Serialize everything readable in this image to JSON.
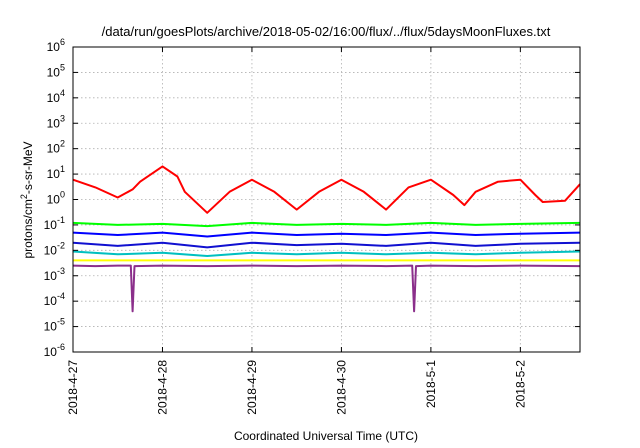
{
  "chart_data": {
    "type": "line",
    "title": "/data/run/goesPlots/archive/2018-05-02/16:00/flux/../flux/5daysMoonFluxes.txt",
    "xlabel": "Coordinated Universal Time (UTC)",
    "ylabel_parts": {
      "pre": "protons/cm",
      "sup": "2",
      "post": "-s-sr-MeV"
    },
    "y_scale": "log",
    "ylim": [
      1e-06,
      1000000.0
    ],
    "y_ticks": [
      {
        "value": 1e-06,
        "base": "10",
        "exp": "-6"
      },
      {
        "value": 1e-05,
        "base": "10",
        "exp": "-5"
      },
      {
        "value": 0.0001,
        "base": "10",
        "exp": "-4"
      },
      {
        "value": 0.001,
        "base": "10",
        "exp": "-3"
      },
      {
        "value": 0.01,
        "base": "10",
        "exp": "-2"
      },
      {
        "value": 0.1,
        "base": "10",
        "exp": "-1"
      },
      {
        "value": 1.0,
        "base": "10",
        "exp": "0"
      },
      {
        "value": 10.0,
        "base": "10",
        "exp": "1"
      },
      {
        "value": 100.0,
        "base": "10",
        "exp": "2"
      },
      {
        "value": 1000.0,
        "base": "10",
        "exp": "3"
      },
      {
        "value": 10000.0,
        "base": "10",
        "exp": "4"
      },
      {
        "value": 100000.0,
        "base": "10",
        "exp": "5"
      },
      {
        "value": 1000000.0,
        "base": "10",
        "exp": "6"
      }
    ],
    "xlim": [
      "2018-04-27 00:00",
      "2018-05-02 16:00"
    ],
    "x_ticks": [
      {
        "value": "2018-04-27 00:00",
        "label": "2018-4-27"
      },
      {
        "value": "2018-04-28 00:00",
        "label": "2018-4-28"
      },
      {
        "value": "2018-04-29 00:00",
        "label": "2018-4-29"
      },
      {
        "value": "2018-04-30 00:00",
        "label": "2018-4-30"
      },
      {
        "value": "2018-05-01 00:00",
        "label": "2018-5-1"
      },
      {
        "value": "2018-05-02 00:00",
        "label": "2018-5-2"
      }
    ],
    "grid": true,
    "series": [
      {
        "color": "#ff0000",
        "x": [
          "2018-04-27 00:00",
          "2018-04-27 06:00",
          "2018-04-27 12:00",
          "2018-04-27 16:00",
          "2018-04-27 18:00",
          "2018-04-28 00:00",
          "2018-04-28 04:00",
          "2018-04-28 06:00",
          "2018-04-28 12:00",
          "2018-04-28 18:00",
          "2018-04-29 00:00",
          "2018-04-29 06:00",
          "2018-04-29 12:00",
          "2018-04-29 18:00",
          "2018-04-30 00:00",
          "2018-04-30 06:00",
          "2018-04-30 12:00",
          "2018-04-30 18:00",
          "2018-05-01 00:00",
          "2018-05-01 06:00",
          "2018-05-01 09:00",
          "2018-05-01 12:00",
          "2018-05-01 18:00",
          "2018-05-02 00:00",
          "2018-05-02 04:00",
          "2018-05-02 06:00",
          "2018-05-02 12:00",
          "2018-05-02 16:00"
        ],
        "values": [
          6,
          3,
          1.2,
          2.5,
          5,
          20,
          8,
          2,
          0.3,
          2,
          6,
          2,
          0.4,
          2,
          6,
          2,
          0.4,
          3,
          6,
          1.5,
          0.6,
          2,
          5,
          6,
          1.5,
          0.8,
          0.9,
          4
        ]
      },
      {
        "color": "#00ff00",
        "x": [
          "2018-04-27 00:00",
          "2018-04-27 12:00",
          "2018-04-28 00:00",
          "2018-04-28 12:00",
          "2018-04-29 00:00",
          "2018-04-29 12:00",
          "2018-04-30 00:00",
          "2018-04-30 12:00",
          "2018-05-01 00:00",
          "2018-05-01 12:00",
          "2018-05-02 00:00",
          "2018-05-02 16:00"
        ],
        "values": [
          0.12,
          0.1,
          0.11,
          0.09,
          0.12,
          0.1,
          0.11,
          0.1,
          0.12,
          0.1,
          0.11,
          0.12
        ]
      },
      {
        "color": "#0000ff",
        "x": [
          "2018-04-27 00:00",
          "2018-04-27 12:00",
          "2018-04-28 00:00",
          "2018-04-28 12:00",
          "2018-04-29 00:00",
          "2018-04-29 12:00",
          "2018-04-30 00:00",
          "2018-04-30 12:00",
          "2018-05-01 00:00",
          "2018-05-01 12:00",
          "2018-05-02 00:00",
          "2018-05-02 16:00"
        ],
        "values": [
          0.05,
          0.04,
          0.05,
          0.035,
          0.05,
          0.04,
          0.045,
          0.04,
          0.05,
          0.04,
          0.045,
          0.05
        ]
      },
      {
        "color": "#1010d0",
        "x": [
          "2018-04-27 00:00",
          "2018-04-27 12:00",
          "2018-04-28 00:00",
          "2018-04-28 12:00",
          "2018-04-29 00:00",
          "2018-04-29 12:00",
          "2018-04-30 00:00",
          "2018-04-30 12:00",
          "2018-05-01 00:00",
          "2018-05-01 12:00",
          "2018-05-02 00:00",
          "2018-05-02 16:00"
        ],
        "values": [
          0.02,
          0.015,
          0.02,
          0.013,
          0.02,
          0.016,
          0.018,
          0.015,
          0.02,
          0.015,
          0.018,
          0.02
        ]
      },
      {
        "color": "#00c0c0",
        "x": [
          "2018-04-27 00:00",
          "2018-04-27 12:00",
          "2018-04-28 00:00",
          "2018-04-28 12:00",
          "2018-04-29 00:00",
          "2018-04-29 12:00",
          "2018-04-30 00:00",
          "2018-04-30 12:00",
          "2018-05-01 00:00",
          "2018-05-01 12:00",
          "2018-05-02 00:00",
          "2018-05-02 16:00"
        ],
        "values": [
          0.009,
          0.007,
          0.008,
          0.006,
          0.008,
          0.007,
          0.008,
          0.007,
          0.008,
          0.007,
          0.008,
          0.009
        ]
      },
      {
        "color": "#ffff00",
        "x": [
          "2018-04-27 00:00",
          "2018-04-28 00:00",
          "2018-04-29 00:00",
          "2018-04-30 00:00",
          "2018-05-01 00:00",
          "2018-05-02 00:00",
          "2018-05-02 16:00"
        ],
        "values": [
          0.004,
          0.004,
          0.004,
          0.004,
          0.004,
          0.004,
          0.004
        ]
      },
      {
        "color": "#8b2f8b",
        "x": [
          "2018-04-27 00:00",
          "2018-04-27 06:00",
          "2018-04-27 12:00",
          "2018-04-27 15:30",
          "2018-04-27 16:00",
          "2018-04-27 16:30",
          "2018-04-28 00:00",
          "2018-04-28 12:00",
          "2018-04-29 00:00",
          "2018-04-29 12:00",
          "2018-04-30 00:00",
          "2018-04-30 12:00",
          "2018-04-30 19:00",
          "2018-04-30 19:30",
          "2018-04-30 20:00",
          "2018-05-01 00:00",
          "2018-05-01 12:00",
          "2018-05-02 00:00",
          "2018-05-02 16:00"
        ],
        "values": [
          0.0025,
          0.0024,
          0.0025,
          0.0025,
          4e-05,
          0.0024,
          0.0025,
          0.0024,
          0.0025,
          0.0024,
          0.0025,
          0.0024,
          0.0025,
          4e-05,
          0.0024,
          0.0025,
          0.0024,
          0.0025,
          0.0024
        ]
      }
    ]
  }
}
